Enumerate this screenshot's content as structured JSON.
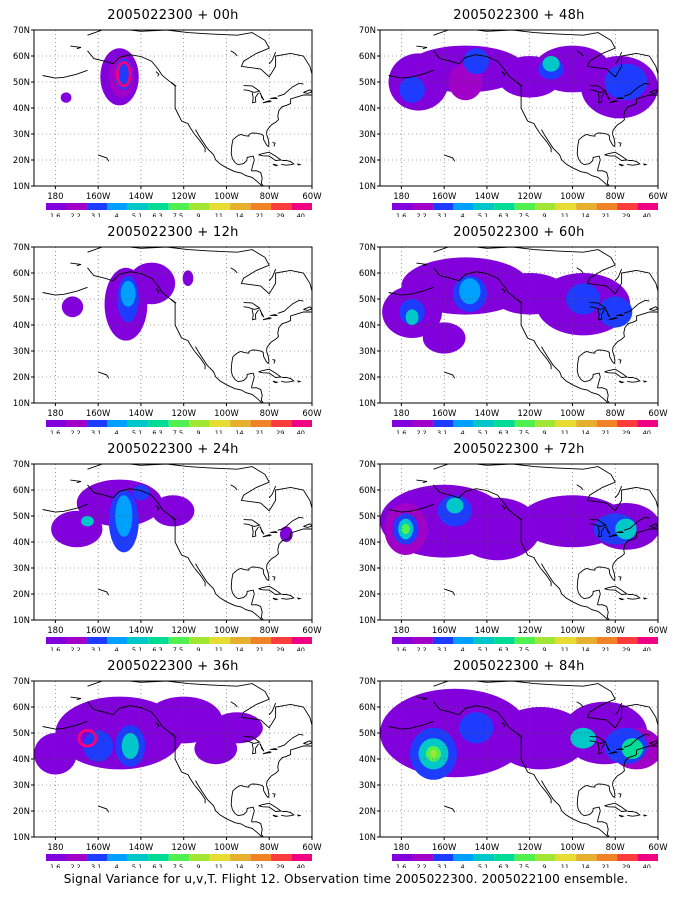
{
  "palette": [
    "#8200dc",
    "#a000c8",
    "#1e3cff",
    "#00a0ff",
    "#00c8c8",
    "#00dc96",
    "#50f050",
    "#a0e632",
    "#e6dc32",
    "#e6af2d",
    "#f08228",
    "#fa3c3c",
    "#f00082"
  ],
  "legend_labels": [
    "1.6",
    "2.2",
    "3.1",
    "4",
    "5.1",
    "6.3",
    "7.5",
    "9",
    "11",
    "14",
    "21",
    "29",
    "40"
  ],
  "y_ticks": [
    "70N",
    "60N",
    "50N",
    "40N",
    "30N",
    "20N",
    "10N"
  ],
  "x_ticks": [
    "180",
    "160W",
    "140W",
    "120W",
    "100W",
    "80W",
    "60W"
  ],
  "footer": "Signal Variance for u,v,T. Flight 12. Observation time 2005022300. 2005022100 ensemble.",
  "panels": [
    {
      "id": "00h",
      "title": "2005022300 + 00h",
      "max_level": 12
    },
    {
      "id": "48h",
      "title": "2005022300 + 48h",
      "max_level": 4
    },
    {
      "id": "12h",
      "title": "2005022300 + 12h",
      "max_level": 3
    },
    {
      "id": "60h",
      "title": "2005022300 + 60h",
      "max_level": 4
    },
    {
      "id": "24h",
      "title": "2005022300 + 24h",
      "max_level": 4
    },
    {
      "id": "72h",
      "title": "2005022300 + 72h",
      "max_level": 6
    },
    {
      "id": "36h",
      "title": "2005022300 + 36h",
      "max_level": 4
    },
    {
      "id": "84h",
      "title": "2005022300 + 84h",
      "max_level": 7
    }
  ]
}
